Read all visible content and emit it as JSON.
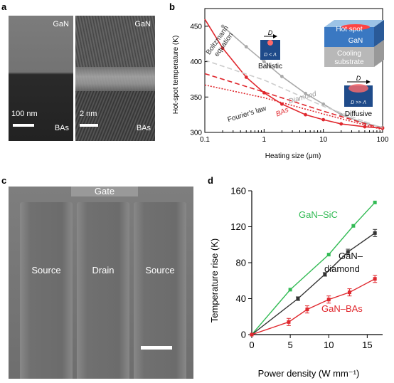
{
  "panels": {
    "a": {
      "label": "a",
      "left": {
        "top_label": "GaN",
        "bottom_label": "BAs",
        "scale": "100 nm"
      },
      "right": {
        "top_label": "GaN",
        "bottom_label": "BAs",
        "scale": "2 nm"
      }
    },
    "b": {
      "label": "b",
      "annotations": {
        "boltzmann": [
          "Boltzmann",
          "equation"
        ],
        "diamond": "Diamond",
        "bas": "BAs",
        "fourier": "Fourier's law",
        "ballistic": "Ballistic",
        "ballistic_cond": "D < Λ",
        "diffusive": "Diffusive",
        "diffusive_cond": "D >> Λ",
        "d_symbol": "D",
        "hot_spot": "Hot spot",
        "gan": "GaN",
        "cooling": [
          "Cooling",
          "substrate"
        ]
      }
    },
    "c": {
      "label": "c",
      "gate": "Gate",
      "source_left": "Source",
      "drain": "Drain",
      "source_right": "Source"
    },
    "d": {
      "label": "d"
    }
  },
  "chart_data": [
    {
      "panel": "b",
      "type": "line",
      "xlabel": "Heating size (μm)",
      "ylabel": "Hot-spot temperature (K)",
      "x_scale": "log",
      "xlim": [
        0.1,
        100
      ],
      "ylim": [
        300,
        475
      ],
      "x_ticks": [
        0.1,
        1,
        10,
        100
      ],
      "x_tick_labels": [
        "0.1",
        "1",
        "10",
        "100"
      ],
      "y_ticks": [
        300,
        350,
        400,
        450
      ],
      "y_tick_labels": [
        "300",
        "350",
        "400",
        "450"
      ],
      "series": [
        {
          "name": "Diamond",
          "color": "#aaaaaa",
          "style": "solid",
          "x": [
            0.2,
            0.5,
            1,
            2,
            5,
            10,
            20,
            50,
            100
          ],
          "y": [
            450,
            421,
            400,
            379,
            355,
            340,
            325,
            313,
            307
          ]
        },
        {
          "name": "BAs",
          "color": "#e0282e",
          "style": "solid",
          "x": [
            0.1,
            0.2,
            0.5,
            1,
            2,
            5,
            10,
            20,
            50,
            100
          ],
          "y": [
            460,
            419,
            378,
            356,
            340,
            325,
            318,
            312,
            308,
            306
          ]
        },
        {
          "name": "Diamond",
          "color": "#cccccc",
          "style": "dashed",
          "x": [
            0.1,
            1,
            10,
            100
          ],
          "y": [
            402,
            374,
            337,
            306
          ]
        },
        {
          "name": "BAs",
          "color": "#e0282e",
          "style": "dashed",
          "x": [
            0.1,
            1,
            10,
            100
          ],
          "y": [
            383,
            357,
            330,
            305
          ]
        },
        {
          "name": "Fourier's law",
          "color": "#e0282e",
          "style": "dotted",
          "x": [
            0.1,
            1,
            10,
            100
          ],
          "y": [
            367,
            349,
            326,
            304
          ]
        }
      ]
    },
    {
      "panel": "d",
      "type": "line",
      "xlabel": "Power density (W mm⁻¹)",
      "ylabel": "Temperature rise (K)",
      "xlim": [
        0,
        17
      ],
      "ylim": [
        0,
        160
      ],
      "x_ticks": [
        0,
        5,
        10,
        15
      ],
      "x_tick_labels": [
        "0",
        "5",
        "10",
        "15"
      ],
      "y_ticks": [
        0,
        40,
        80,
        120,
        160
      ],
      "y_tick_labels": [
        "0",
        "40",
        "80",
        "120",
        "160"
      ],
      "series": [
        {
          "name": "GaN–SiC",
          "color": "#33bb55",
          "x": [
            0,
            5,
            10,
            13.2,
            16
          ],
          "y": [
            0,
            50,
            89,
            121,
            147
          ],
          "err": [
            0,
            0,
            0,
            0,
            0
          ]
        },
        {
          "name": [
            "GaN–",
            "diamond"
          ],
          "color": "#333333",
          "x": [
            0,
            6,
            9.5,
            12.5,
            16
          ],
          "y": [
            0,
            40,
            67,
            92,
            113
          ],
          "err": [
            0,
            2,
            2,
            3,
            4
          ]
        },
        {
          "name": "GaN–BAs",
          "color": "#e0282e",
          "x": [
            0,
            4.8,
            7.2,
            10,
            12.7,
            16
          ],
          "y": [
            0,
            14,
            28,
            39,
            47,
            62
          ],
          "err": [
            0,
            4,
            4,
            4,
            4,
            4
          ]
        }
      ]
    }
  ]
}
